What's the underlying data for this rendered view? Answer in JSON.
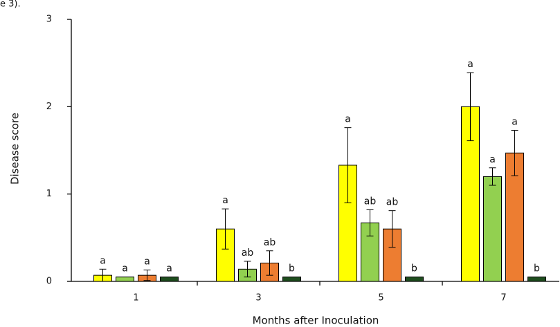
{
  "chart_data": {
    "type": "bar",
    "caption_fragment": "e 3).",
    "xlabel": "Months after Inoculation",
    "ylabel": "Disease score",
    "categories": [
      "1",
      "3",
      "5",
      "7"
    ],
    "ylim": [
      0,
      3
    ],
    "yticks": [
      0,
      1,
      2,
      3
    ],
    "series": [
      {
        "color": "#ffff00",
        "values": [
          0.07,
          0.6,
          1.33,
          2.0
        ],
        "errors": [
          0.07,
          0.23,
          0.43,
          0.39
        ],
        "letters": [
          "a",
          "a",
          "a",
          "a"
        ]
      },
      {
        "color": "#92d050",
        "values": [
          0.05,
          0.14,
          0.67,
          1.2
        ],
        "errors": [
          0,
          0.09,
          0.15,
          0.1
        ],
        "letters": [
          "a",
          "ab",
          "ab",
          "a"
        ]
      },
      {
        "color": "#ed7d31",
        "values": [
          0.07,
          0.21,
          0.6,
          1.47
        ],
        "errors": [
          0.06,
          0.14,
          0.21,
          0.26
        ],
        "letters": [
          "a",
          "ab",
          "ab",
          "a"
        ]
      },
      {
        "color": "#1e4d1e",
        "values": [
          0.05,
          0.05,
          0.05,
          0.05
        ],
        "errors": [
          0,
          0,
          0,
          0
        ],
        "letters": [
          "a",
          "b",
          "b",
          "b"
        ]
      }
    ]
  }
}
